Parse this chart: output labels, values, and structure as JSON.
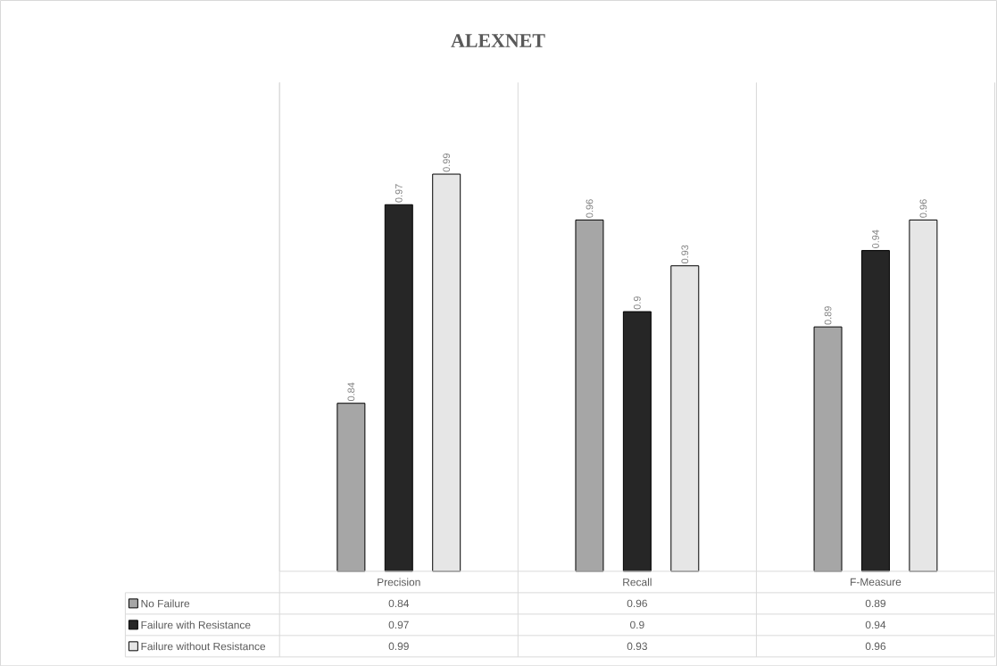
{
  "chart_data": {
    "type": "bar",
    "title": "ALEXNET",
    "categories": [
      "Precision",
      "Recall",
      "F-Measure"
    ],
    "series": [
      {
        "name": "No Failure",
        "color": "#a6a6a6",
        "values": [
          0.84,
          0.96,
          0.89
        ],
        "value_labels": [
          "0.84",
          "0.96",
          "0.89"
        ]
      },
      {
        "name": "Failure with Resistance",
        "color": "#262626",
        "values": [
          0.97,
          0.9,
          0.94
        ],
        "value_labels": [
          "0.97",
          "0.9",
          "0.94"
        ]
      },
      {
        "name": "Failure without Resistance",
        "color": "#e6e6e6",
        "values": [
          0.99,
          0.93,
          0.96
        ],
        "value_labels": [
          "0.99",
          "0.93",
          "0.96"
        ]
      }
    ],
    "annotations": [
      "0.84",
      "0.96",
      "0.89",
      "0.97",
      "0.9",
      "0.94",
      "0.99",
      "0.93",
      "0.96"
    ],
    "ylim": [
      0.73,
      1.05
    ],
    "tick_labels": "x",
    "grid": "x",
    "legend": "bottom"
  }
}
